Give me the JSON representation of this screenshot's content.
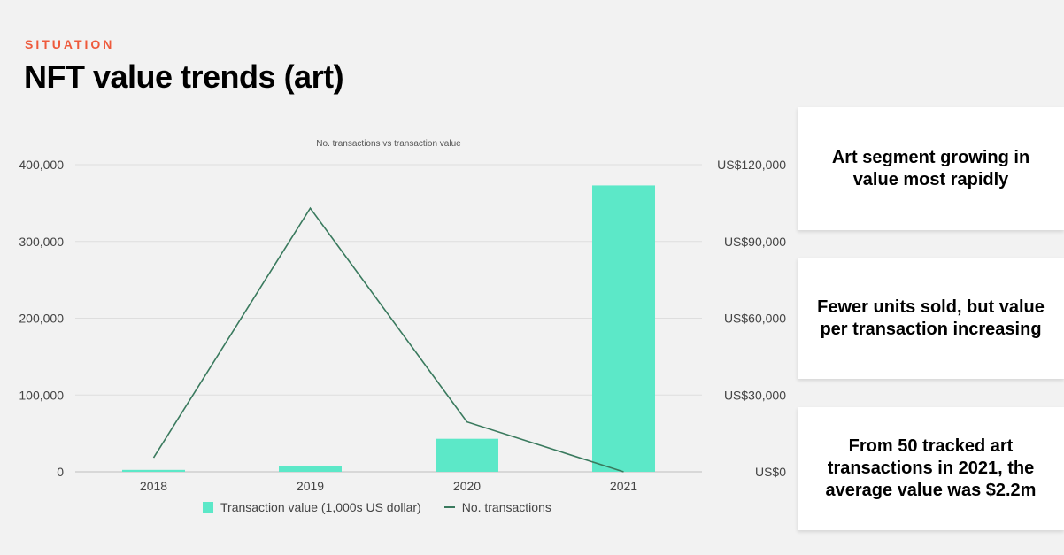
{
  "header": {
    "eyebrow": "SITUATION",
    "title": "NFT value trends (art)"
  },
  "chart_data": {
    "type": "bar",
    "title": "No. transactions vs transaction value",
    "categories": [
      "2018",
      "2019",
      "2020",
      "2021"
    ],
    "series": [
      {
        "name": "Transaction value (1,000s US dollar)",
        "type": "bar",
        "axis": "left",
        "color": "#5ce8c8",
        "values": [
          2500,
          8000,
          43000,
          373000
        ]
      },
      {
        "name": "No. transactions",
        "type": "line",
        "axis": "right",
        "color": "#3a7a5e",
        "values": [
          5500,
          103000,
          19500,
          0
        ]
      }
    ],
    "left_axis": {
      "ylim": [
        0,
        400000
      ],
      "ticks": [
        0,
        100000,
        200000,
        300000,
        400000
      ],
      "tick_labels": [
        "0",
        "100,000",
        "200,000",
        "300,000",
        "400,000"
      ]
    },
    "right_axis": {
      "ylim": [
        0,
        120000
      ],
      "ticks": [
        0,
        30000,
        60000,
        90000,
        120000
      ],
      "tick_labels": [
        "US$0",
        "US$30,000",
        "US$60,000",
        "US$90,000",
        "US$120,000"
      ]
    },
    "grid": true,
    "legend_position": "bottom"
  },
  "cards": [
    {
      "text": "Art segment growing in value most rapidly"
    },
    {
      "text": "Fewer units sold, but value per transaction increasing"
    },
    {
      "text": "From 50 tracked art transactions in 2021, the average value was $2.2m"
    }
  ]
}
